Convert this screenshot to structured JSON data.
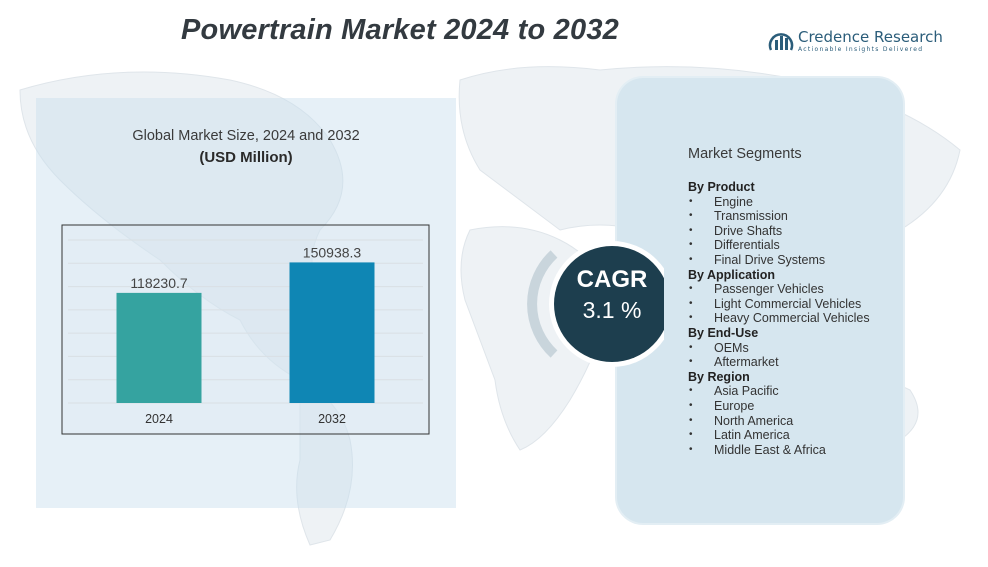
{
  "title": "Powertrain Market 2024 to 2032",
  "logo": {
    "brand": "Credence Research",
    "tagline": "Actionable Insights Delivered"
  },
  "chart_heading": "Global Market Size, 2024 and 2032",
  "chart_unit": "(USD Million)",
  "cagr": {
    "label": "CAGR",
    "value": "3.1 %"
  },
  "segments": {
    "title": "Market Segments",
    "groups": [
      {
        "title": "By  Product",
        "items": [
          "Engine",
          "Transmission",
          "Drive Shafts",
          "Differentials",
          "Final Drive Systems"
        ]
      },
      {
        "title": "By Application",
        "items": [
          "Passenger Vehicles",
          "Light Commercial Vehicles",
          "Heavy Commercial Vehicles"
        ]
      },
      {
        "title": "By End-Use",
        "items": [
          "OEMs",
          "Aftermarket"
        ]
      },
      {
        "title": "By Region",
        "items": [
          "Asia Pacific",
          "Europe",
          "North America",
          "Latin America",
          "Middle East & Africa"
        ]
      }
    ]
  },
  "colors": {
    "bar_2024": "#35a3a0",
    "bar_2032": "#0f86b4",
    "cagr_circle": "#1d3e4e",
    "panel": "#d6e6ef"
  },
  "chart_data": {
    "type": "bar",
    "categories": [
      "2024",
      "2032"
    ],
    "values": [
      118230.7,
      150938.3
    ],
    "value_labels": [
      "118230.7",
      "150938.3"
    ],
    "title": "Global Market Size, 2024 and 2032",
    "ylabel": "(USD Million)",
    "xlabel": "",
    "ylim": [
      0,
      175000
    ],
    "grid": true
  }
}
